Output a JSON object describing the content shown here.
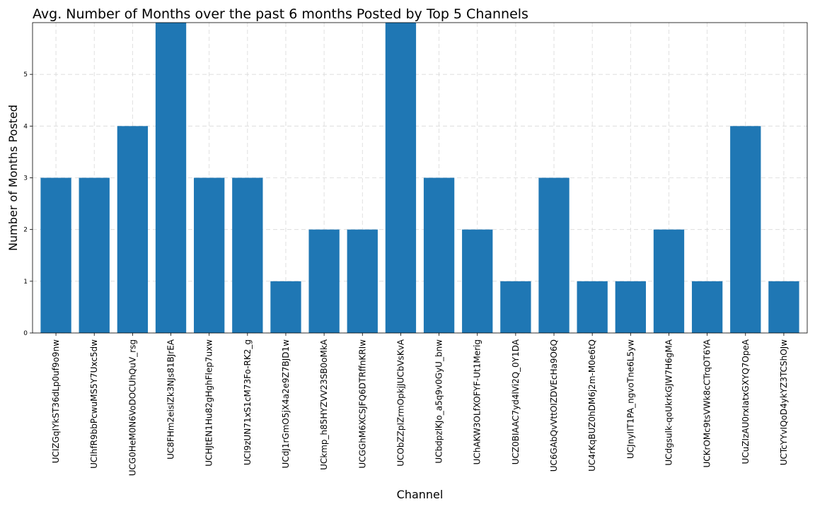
{
  "chart_data": {
    "type": "bar",
    "title": "Avg. Number of Months over the past 6 months Posted by Top 5 Channels",
    "xlabel": "Channel",
    "ylabel": "Number of Months Posted",
    "ylim": [
      0,
      6
    ],
    "yticks": [
      0,
      1,
      2,
      3,
      4,
      5
    ],
    "grid": true,
    "bar_color": "#1f77b4",
    "categories": [
      "UCIZGqIYkST36dLp0uf9o9nw",
      "UCIhfR9bbPcwuMS5Y7Uxc5dw",
      "UCG0HeM0N6VoDOCUhQuV_rsg",
      "UC8FHm2eisIZk3NJs81BJrEA",
      "UCHJtEN1Hu82gHghFlep7uxw",
      "UCI9zUN71xS1cM73Fo-RK2_g",
      "UCdJ1rGmO5jX4a2e9Z7BJD1w",
      "UCkmp_h85HYZVV23SB0oMkA",
      "UCGGhM6XCSJFQ6DTRffnKRIw",
      "UCObZZpIZrmOpkjJUCbVsKvA",
      "UCbdpzlKJo_a5q9v0GyU_bnw",
      "UChAKW3OLfXOFYF-Ut1Merig",
      "UCZ0BIAAC7yd4lVi2Q_0Y1DA",
      "UC6GAbQvVttOIZDVEcHa9O6Q",
      "UC4rKqBUZ0hDM6j2m-M0e6tQ",
      "UCJnyIIT1PA_ngvoTne6L5yw",
      "UCdgsulk-qoUkrkGJW7H6gMA",
      "UCKrOMc9tsVWk8cCTrqOT6YA",
      "UCuZIzAU0rxIatxGXYQ7OpeA",
      "UCTcYYvIQoD4ykYZ3TCShOJw"
    ],
    "values": [
      3,
      3,
      4,
      6,
      3,
      3,
      1,
      2,
      2,
      6,
      3,
      2,
      1,
      3,
      1,
      1,
      2,
      1,
      4,
      1
    ]
  }
}
